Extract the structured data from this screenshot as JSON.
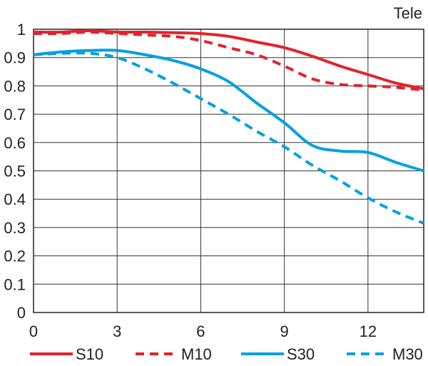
{
  "chart_data": {
    "type": "line",
    "title": "",
    "corner_label": "Tele",
    "xlabel": "",
    "ylabel": "",
    "xlim": [
      0,
      14
    ],
    "ylim": [
      0,
      1
    ],
    "x_ticks": [
      0,
      3,
      6,
      9,
      12
    ],
    "x_tick_labels": [
      "0",
      "3",
      "6",
      "9",
      "12"
    ],
    "y_ticks": [
      0,
      0.1,
      0.2,
      0.3,
      0.4,
      0.5,
      0.6,
      0.7,
      0.8,
      0.9,
      1
    ],
    "y_tick_labels": [
      "0",
      "0.1",
      "0.2",
      "0.3",
      "0.4",
      "0.5",
      "0.6",
      "0.7",
      "0.8",
      "0.9",
      "1"
    ],
    "grid": true,
    "legend_position": "bottom",
    "series": [
      {
        "name": "S10",
        "color": "#e3222b",
        "dashed": false,
        "x": [
          0,
          1,
          2,
          3,
          4,
          5,
          6,
          7,
          8,
          9,
          10,
          11,
          12,
          13,
          14
        ],
        "y": [
          0.99,
          0.99,
          0.995,
          0.99,
          0.99,
          0.988,
          0.985,
          0.975,
          0.955,
          0.935,
          0.905,
          0.87,
          0.84,
          0.81,
          0.79
        ]
      },
      {
        "name": "M10",
        "color": "#e3222b",
        "dashed": true,
        "x": [
          0,
          1,
          2,
          3,
          4,
          5,
          6,
          7,
          8,
          9,
          10,
          11,
          12,
          13,
          14
        ],
        "y": [
          0.985,
          0.985,
          0.99,
          0.985,
          0.98,
          0.975,
          0.96,
          0.935,
          0.91,
          0.87,
          0.825,
          0.805,
          0.8,
          0.795,
          0.785
        ]
      },
      {
        "name": "S30",
        "color": "#00a0e3",
        "dashed": false,
        "x": [
          0,
          1,
          2,
          3,
          4,
          5,
          6,
          7,
          8,
          9,
          10,
          11,
          12,
          13,
          14
        ],
        "y": [
          0.91,
          0.92,
          0.925,
          0.925,
          0.91,
          0.89,
          0.86,
          0.815,
          0.74,
          0.67,
          0.59,
          0.57,
          0.565,
          0.53,
          0.5
        ]
      },
      {
        "name": "M30",
        "color": "#00a0e3",
        "dashed": true,
        "x": [
          0,
          1,
          2,
          3,
          4,
          5,
          6,
          7,
          8,
          9,
          10,
          11,
          12,
          13,
          14
        ],
        "y": [
          0.91,
          0.915,
          0.915,
          0.9,
          0.86,
          0.81,
          0.755,
          0.7,
          0.64,
          0.585,
          0.52,
          0.465,
          0.405,
          0.355,
          0.315
        ]
      }
    ]
  }
}
